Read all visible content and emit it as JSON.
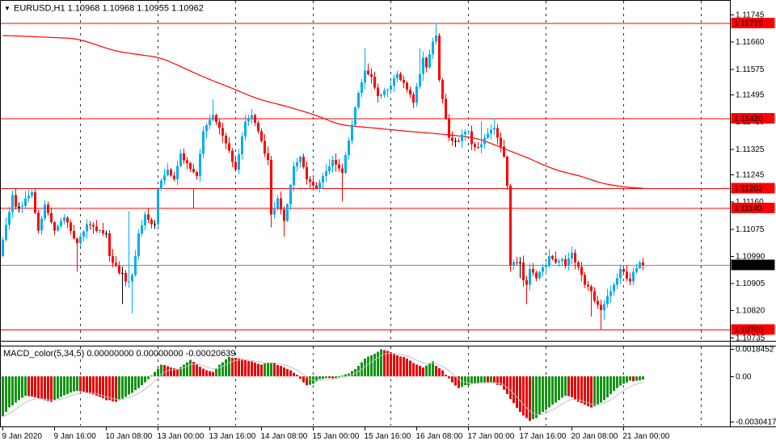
{
  "title": {
    "marker": "▼",
    "line": "EURUSD,H1  1.10968 1.10968 1.10955 1.10962",
    "symbol": "EURUSD,H1",
    "open": "1.10968",
    "high": "1.10968",
    "low": "1.10955",
    "close": "1.10962"
  },
  "macd_label": {
    "line": "MACD_color(5,34,5) 0.00000000 0.00000000 -0.00020639",
    "name": "MACD_color(5,34,5)",
    "values": [
      "0.00000000",
      "0.00000000",
      "-0.00020639"
    ]
  },
  "colors": {
    "background": "#ffffff",
    "bull_candle": "#00AEEF",
    "bear_candle": "#FF0000",
    "doji_candle": "#000000",
    "ma_line": "#FF0000",
    "level_line": "#FF0000",
    "bid_line": "#7A8A99",
    "macd_up": "#149414",
    "macd_down": "#E60000",
    "macd_signal": "#C2C2C2",
    "badge_level_bg": "#FF0000",
    "badge_current_bg": "#000000",
    "badge_text": "#ffffff",
    "grid": "#333333",
    "frame": "#000000"
  },
  "price_axis": {
    "ticks": [
      {
        "label": "1.11745",
        "value": 1.11745
      },
      {
        "label": "1.11660",
        "value": 1.1166
      },
      {
        "label": "1.11575",
        "value": 1.11575
      },
      {
        "label": "1.11495",
        "value": 1.11495
      },
      {
        "label": "1.11410",
        "value": 1.1141
      },
      {
        "label": "1.11325",
        "value": 1.11325
      },
      {
        "label": "1.11245",
        "value": 1.11245
      },
      {
        "label": "1.11160",
        "value": 1.1116
      },
      {
        "label": "1.11075",
        "value": 1.11075
      },
      {
        "label": "1.10990",
        "value": 1.1099
      },
      {
        "label": "1.10905",
        "value": 1.10905
      },
      {
        "label": "1.10820",
        "value": 1.1082
      },
      {
        "label": "1.10735",
        "value": 1.10735
      }
    ],
    "line_badges": [
      {
        "label": "1.11719",
        "value": 1.11719
      },
      {
        "label": "1.11420",
        "value": 1.1142
      },
      {
        "label": "1.11202",
        "value": 1.11202
      },
      {
        "label": "1.11140",
        "value": 1.1114
      },
      {
        "label": "1.10760",
        "value": 1.1076
      }
    ],
    "current": {
      "label": "1.10962",
      "value": 1.10962
    }
  },
  "macd_axis": {
    "ticks": [
      {
        "label": "0.0018452",
        "value": 0.0018452
      },
      {
        "label": "0.00",
        "value": 0
      },
      {
        "label": "-0.0030417",
        "value": -0.0030417
      }
    ]
  },
  "time_axis": {
    "labels": [
      {
        "text": "9 Jan 2020",
        "bar": 0
      },
      {
        "text": "9 Jan 16:00",
        "bar": 16
      },
      {
        "text": "10 Jan 08:00",
        "bar": 32
      },
      {
        "text": "13 Jan 00:00",
        "bar": 48
      },
      {
        "text": "13 Jan 16:00",
        "bar": 64
      },
      {
        "text": "14 Jan 08:00",
        "bar": 80
      },
      {
        "text": "15 Jan 00:00",
        "bar": 96
      },
      {
        "text": "15 Jan 16:00",
        "bar": 112
      },
      {
        "text": "16 Jan 08:00",
        "bar": 128
      },
      {
        "text": "17 Jan 00:00",
        "bar": 144
      },
      {
        "text": "17 Jan 16:00",
        "bar": 160
      },
      {
        "text": "20 Jan 08:00",
        "bar": 176
      },
      {
        "text": "21 Jan 00:00",
        "bar": 192
      }
    ]
  },
  "chart_data": {
    "type": "candlestick+macd",
    "symbol": "EURUSD",
    "timeframe": "H1",
    "bars": 199,
    "day_start_bars": [
      24,
      48,
      72,
      96,
      120,
      144,
      168,
      192,
      216
    ],
    "price_path": [
      [
        0,
        1.1104
      ],
      [
        3,
        1.1118
      ],
      [
        5,
        1.1112
      ],
      [
        7,
        1.1117
      ],
      [
        9,
        1.1119
      ],
      [
        11,
        1.1107
      ],
      [
        13,
        1.1115
      ],
      [
        16,
        1.1107
      ],
      [
        19,
        1.1111
      ],
      [
        23,
        1.1103
      ],
      [
        26,
        1.1109
      ],
      [
        31,
        1.1106
      ],
      [
        33,
        1.1099
      ],
      [
        37,
        1.1092
      ],
      [
        39,
        1.1091
      ],
      [
        40,
        1.1093
      ],
      [
        42,
        1.1106
      ],
      [
        44,
        1.1112
      ],
      [
        46,
        1.1109
      ],
      [
        48,
        1.112
      ],
      [
        51,
        1.1126
      ],
      [
        53,
        1.1123
      ],
      [
        55,
        1.1131
      ],
      [
        57,
        1.1128
      ],
      [
        60,
        1.1124
      ],
      [
        62,
        1.1138
      ],
      [
        65,
        1.1143
      ],
      [
        67,
        1.1139
      ],
      [
        70,
        1.1132
      ],
      [
        72,
        1.1126
      ],
      [
        75,
        1.1141
      ],
      [
        77,
        1.1143
      ],
      [
        79,
        1.1138
      ],
      [
        81,
        1.1131
      ],
      [
        82,
        1.1129
      ],
      [
        83,
        1.1112
      ],
      [
        85,
        1.1117
      ],
      [
        87,
        1.111
      ],
      [
        90,
        1.1127
      ],
      [
        92,
        1.113
      ],
      [
        94,
        1.1123
      ],
      [
        97,
        1.112
      ],
      [
        99,
        1.1124
      ],
      [
        102,
        1.1129
      ],
      [
        105,
        1.1125
      ],
      [
        108,
        1.114
      ],
      [
        110,
        1.115
      ],
      [
        112,
        1.1157
      ],
      [
        114,
        1.1155
      ],
      [
        116,
        1.1149
      ],
      [
        119,
        1.1151
      ],
      [
        122,
        1.1156
      ],
      [
        125,
        1.1151
      ],
      [
        127,
        1.1147
      ],
      [
        129,
        1.1156
      ],
      [
        130,
        1.1161
      ],
      [
        131,
        1.1158
      ],
      [
        133,
        1.1166
      ],
      [
        134,
        1.1168
      ],
      [
        135,
        1.1154
      ],
      [
        137,
        1.1142
      ],
      [
        138,
        1.1136
      ],
      [
        140,
        1.1133
      ],
      [
        142,
        1.1137
      ],
      [
        144,
        1.1138
      ],
      [
        145,
        1.1134
      ],
      [
        147,
        1.1133
      ],
      [
        149,
        1.1136
      ],
      [
        152,
        1.1139
      ],
      [
        153,
        1.1136
      ],
      [
        155,
        1.113
      ],
      [
        156,
        1.1121
      ],
      [
        157,
        1.1096
      ],
      [
        159,
        1.1097
      ],
      [
        160,
        1.1093
      ],
      [
        162,
        1.109
      ],
      [
        163,
        1.1095
      ],
      [
        165,
        1.1092
      ],
      [
        166,
        1.1094
      ],
      [
        168,
        1.1096
      ],
      [
        169,
        1.1099
      ],
      [
        171,
        1.1097
      ],
      [
        173,
        1.1098
      ],
      [
        174,
        1.1096
      ],
      [
        176,
        1.11
      ],
      [
        177,
        1.1097
      ],
      [
        179,
        1.1093
      ],
      [
        180,
        1.109
      ],
      [
        182,
        1.1088
      ],
      [
        183,
        1.1085
      ],
      [
        185,
        1.1082
      ],
      [
        186,
        1.1084
      ],
      [
        188,
        1.1088
      ],
      [
        190,
        1.1092
      ],
      [
        191,
        1.1095
      ],
      [
        192,
        1.1094
      ],
      [
        194,
        1.1091
      ],
      [
        195,
        1.1094
      ],
      [
        197,
        1.1097
      ],
      [
        198,
        1.10962
      ]
    ],
    "wick_overrides": [
      {
        "b": 23,
        "low": 1.1094
      },
      {
        "b": 37,
        "low": 1.1084
      },
      {
        "b": 39,
        "high": 1.1113,
        "low": 1.1089
      },
      {
        "b": 40,
        "low": 1.1081
      },
      {
        "b": 65,
        "high": 1.1148
      },
      {
        "b": 77,
        "high": 1.1145
      },
      {
        "b": 83,
        "low": 1.1108
      },
      {
        "b": 87,
        "low": 1.1105
      },
      {
        "b": 97,
        "low": 1.112
      },
      {
        "b": 105,
        "low": 1.1116
      },
      {
        "b": 112,
        "high": 1.1164
      },
      {
        "b": 129,
        "high": 1.1164
      },
      {
        "b": 134,
        "high": 1.11719
      },
      {
        "b": 148,
        "high": 1.1141
      },
      {
        "b": 152,
        "high": 1.1142
      },
      {
        "b": 157,
        "low": 1.1094
      },
      {
        "b": 160,
        "low": 1.1092
      },
      {
        "b": 162,
        "low": 1.1084
      },
      {
        "b": 169,
        "high": 1.1101
      },
      {
        "b": 176,
        "high": 1.1102
      },
      {
        "b": 182,
        "low": 1.108
      },
      {
        "b": 185,
        "low": 1.1076
      },
      {
        "b": 186,
        "low": 1.1079
      }
    ],
    "doji_bars": [
      5,
      32,
      37,
      47,
      140,
      160
    ],
    "ma_path": [
      [
        0,
        1.1168
      ],
      [
        23,
        1.1167
      ],
      [
        35,
        1.1163
      ],
      [
        49,
        1.1161
      ],
      [
        62,
        1.1155
      ],
      [
        72,
        1.1151
      ],
      [
        79,
        1.1148
      ],
      [
        87,
        1.1146
      ],
      [
        97,
        1.1143
      ],
      [
        104,
        1.114
      ],
      [
        115,
        1.1139
      ],
      [
        125,
        1.1138
      ],
      [
        137,
        1.1137
      ],
      [
        146,
        1.1136
      ],
      [
        149,
        1.1135
      ],
      [
        154,
        1.1133
      ],
      [
        159,
        1.1131
      ],
      [
        164,
        1.1129
      ],
      [
        168,
        1.1127
      ],
      [
        174,
        1.1125
      ],
      [
        179,
        1.1124
      ],
      [
        184,
        1.1122
      ],
      [
        189,
        1.1121
      ],
      [
        198,
        1.112
      ]
    ],
    "hlines": [
      1.11719,
      1.1142,
      1.11202,
      1.1114,
      1.1076
    ],
    "current_price": 1.10962,
    "rect_zone": {
      "price_top": 1.11202,
      "price_bottom": 1.1114,
      "right_edge_bar": 59
    },
    "macd": {
      "last_value": -0.00020639,
      "range": [
        -0.0030417,
        0.0018452
      ],
      "anchors": [
        [
          0,
          -0.0027
        ],
        [
          2,
          -0.0021
        ],
        [
          5,
          -0.0016
        ],
        [
          7,
          -0.0013
        ],
        [
          10,
          -0.0014
        ],
        [
          13,
          -0.0016
        ],
        [
          15,
          -0.0017
        ],
        [
          17,
          -0.0015
        ],
        [
          20,
          -0.0012
        ],
        [
          22,
          -0.001
        ],
        [
          24,
          -0.001
        ],
        [
          26,
          -0.0011
        ],
        [
          29,
          -0.0013
        ],
        [
          32,
          -0.0016
        ],
        [
          35,
          -0.0017
        ],
        [
          37,
          -0.0015
        ],
        [
          40,
          -0.0011
        ],
        [
          43,
          -0.0006
        ],
        [
          45,
          -0.0002
        ],
        [
          47,
          0.0003
        ],
        [
          49,
          0.0008
        ],
        [
          52,
          0.0006
        ],
        [
          54,
          0.0005
        ],
        [
          56,
          0.0008
        ],
        [
          58,
          0.0011
        ],
        [
          60,
          0.0008
        ],
        [
          63,
          0.0004
        ],
        [
          65,
          0.0003
        ],
        [
          67,
          0.0008
        ],
        [
          70,
          0.0013
        ],
        [
          73,
          0.0012
        ],
        [
          77,
          0.001
        ],
        [
          80,
          0.0008
        ],
        [
          82,
          0.0009
        ],
        [
          84,
          0.0009
        ],
        [
          86,
          0.0007
        ],
        [
          89,
          0.0004
        ],
        [
          91,
          0.0001
        ],
        [
          93,
          -0.0004
        ],
        [
          94,
          -0.0006
        ],
        [
          96,
          -0.0005
        ],
        [
          98,
          -0.0002
        ],
        [
          100,
          -0.0001
        ],
        [
          103,
          -0.0001
        ],
        [
          105,
          5e-05
        ],
        [
          107,
          0.0002
        ],
        [
          109,
          0.0005
        ],
        [
          112,
          0.0012
        ],
        [
          114,
          0.0014
        ],
        [
          117,
          0.00183
        ],
        [
          119,
          0.0017
        ],
        [
          121,
          0.0015
        ],
        [
          122,
          0.0014
        ],
        [
          124,
          0.0013
        ],
        [
          127,
          0.0009
        ],
        [
          130,
          0.0006
        ],
        [
          133,
          0.001
        ],
        [
          134,
          0.0007
        ],
        [
          136,
          0.0004
        ],
        [
          137,
          0.0001
        ],
        [
          139,
          -0.0004
        ],
        [
          141,
          -0.0008
        ],
        [
          143,
          -0.0006
        ],
        [
          146,
          -0.0005
        ],
        [
          148,
          -0.0004
        ],
        [
          151,
          -0.0004
        ],
        [
          154,
          -0.0006
        ],
        [
          156,
          -0.0012
        ],
        [
          158,
          -0.0018
        ],
        [
          160,
          -0.0024
        ],
        [
          162,
          -0.0028
        ],
        [
          163,
          -0.003
        ],
        [
          165,
          -0.0028
        ],
        [
          167,
          -0.0024
        ],
        [
          170,
          -0.0019
        ],
        [
          172,
          -0.0016
        ],
        [
          174,
          -0.0013
        ],
        [
          176,
          -0.0014
        ],
        [
          178,
          -0.0017
        ],
        [
          180,
          -0.0019
        ],
        [
          182,
          -0.0021
        ],
        [
          184,
          -0.0019
        ],
        [
          186,
          -0.0016
        ],
        [
          188,
          -0.0012
        ],
        [
          190,
          -0.0008
        ],
        [
          192,
          -0.0005
        ],
        [
          194,
          -0.0003
        ],
        [
          196,
          -0.0003
        ],
        [
          197,
          -0.00028
        ],
        [
          198,
          -0.00020639
        ]
      ]
    }
  }
}
